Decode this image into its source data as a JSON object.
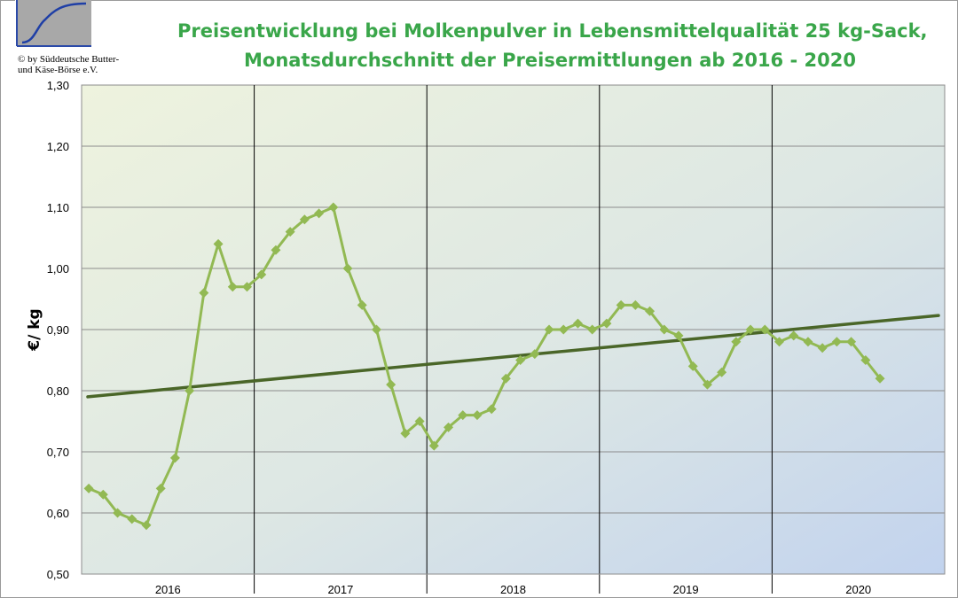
{
  "header": {
    "copyright_line1": "© by Süddeutsche Butter-",
    "copyright_line2": "und Käse-Börse e.V.",
    "title_line1": "Preisentwicklung bei Molkenpulver in Lebensmittelqualität 25 kg-Sack,",
    "title_line2": "Monatsdurchschnitt der Preisermittlungen ab 2016 - 2020"
  },
  "colors": {
    "title": "#3aa64a",
    "series": "#92b953",
    "trend": "#4a6628",
    "gradient_top": "#eef3de",
    "gradient_bottom": "#c2d3ee"
  },
  "chart_data": {
    "type": "line",
    "ylabel": "€/ kg",
    "ylim": [
      0.5,
      1.3
    ],
    "ytick_step": 0.1,
    "yticks": [
      "0,50",
      "0,60",
      "0,70",
      "0,80",
      "0,90",
      "1,00",
      "1,10",
      "1,20",
      "1,30"
    ],
    "years": [
      "2016",
      "2017",
      "2018",
      "2019",
      "2020"
    ],
    "months_per_year": 12,
    "grid": "horizontal lines plus vertical year separators",
    "series": [
      {
        "values": [
          0.64,
          0.63,
          0.6,
          0.59,
          0.58,
          0.64,
          0.69,
          0.8,
          0.96,
          1.04,
          0.97,
          0.97,
          0.99,
          1.03,
          1.06,
          1.08,
          1.09,
          1.1,
          1.0,
          0.94,
          0.9,
          0.81,
          0.73,
          0.75,
          0.71,
          0.74,
          0.76,
          0.76,
          0.77,
          0.82,
          0.85,
          0.86,
          0.9,
          0.9,
          0.91,
          0.9,
          0.91,
          0.94,
          0.94,
          0.93,
          0.9,
          0.89,
          0.84,
          0.81,
          0.83,
          0.88,
          0.9,
          0.9,
          0.88,
          0.89,
          0.88,
          0.87,
          0.88,
          0.88,
          0.85,
          0.82
        ]
      }
    ],
    "trendline": {
      "start": 0.79,
      "end": 0.923
    }
  }
}
